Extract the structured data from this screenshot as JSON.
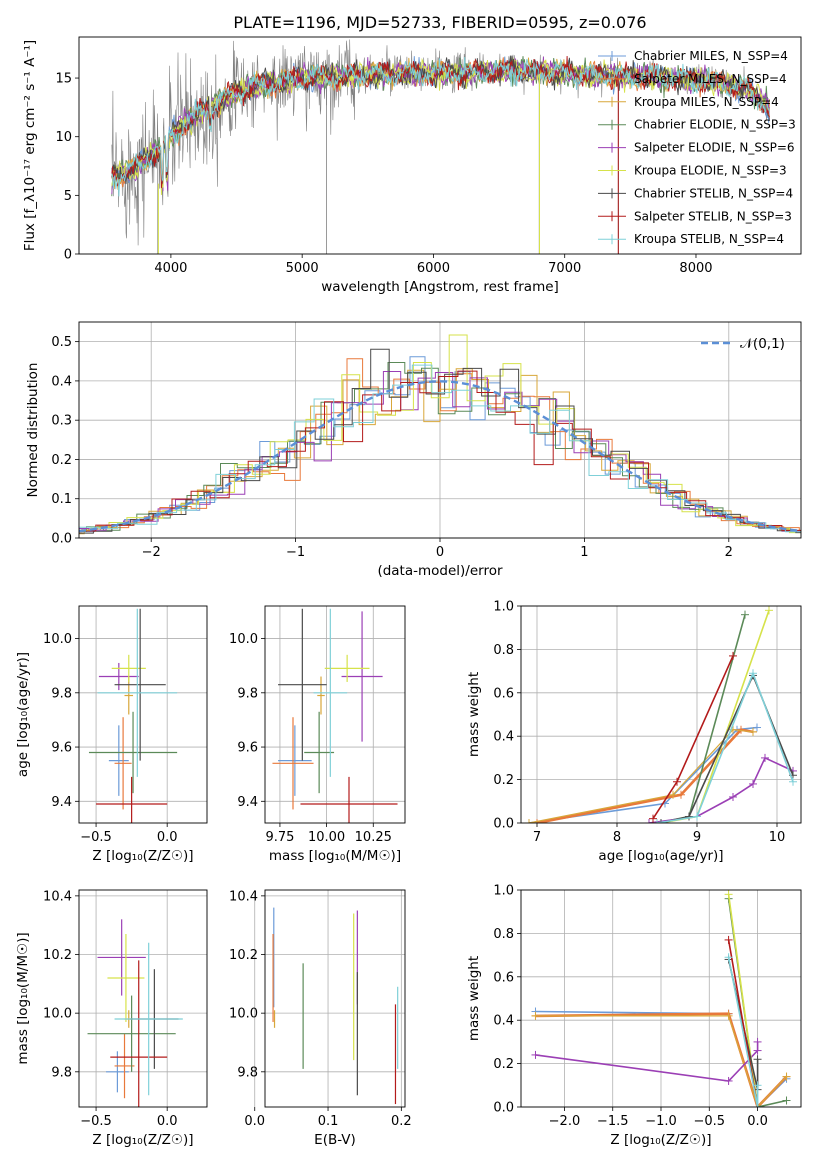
{
  "colors": [
    "#6c9bd8",
    "#e8793b",
    "#d8a73a",
    "#5b8a58",
    "#9b3fb5",
    "#d6e24a",
    "#4a4a4a",
    "#b31b1b",
    "#7fd0d8"
  ],
  "chart_data": [
    {
      "type": "line",
      "title": "PLATE=1196, MJD=52733, FIBERID=0595, z=0.076",
      "xlabel": "wavelength [Angstrom, rest frame]",
      "ylabel": "Flux [f_λ10⁻¹⁷ erg cm⁻² s⁻¹ A⁻¹]",
      "xlim": [
        3300,
        8800
      ],
      "ylim": [
        0,
        18.5
      ],
      "xticks": [
        "4000",
        "5000",
        "6000",
        "7000",
        "8000"
      ],
      "yticks": [
        "0",
        "5",
        "10",
        "15"
      ],
      "grid": false,
      "legend_position": "right",
      "series": [
        {
          "name": "Chabrier MILES, N_SSP=4"
        },
        {
          "name": "Salpeter MILES, N_SSP=4"
        },
        {
          "name": "Kroupa MILES, N_SSP=4"
        },
        {
          "name": "Chabrier ELODIE, N_SSP=3"
        },
        {
          "name": "Salpeter ELODIE, N_SSP=6"
        },
        {
          "name": "Kroupa ELODIE, N_SSP=3"
        },
        {
          "name": "Chabrier STELIB, N_SSP=4"
        },
        {
          "name": "Salpeter STELIB, N_SSP=3"
        },
        {
          "name": "Kroupa STELIB, N_SSP=4"
        }
      ],
      "spectrum_envelope": {
        "x": [
          3550,
          3700,
          3900,
          4100,
          4300,
          4500,
          4800,
          5000,
          5200,
          5500,
          5800,
          6000,
          6300,
          6600,
          6900,
          7200,
          7500,
          7800,
          8100,
          8400,
          8550
        ],
        "y": [
          6.5,
          7.2,
          8.8,
          11.2,
          12.6,
          13.9,
          14.6,
          15.0,
          15.1,
          15.3,
          15.4,
          15.4,
          15.5,
          15.6,
          15.5,
          15.3,
          15.2,
          15.0,
          14.8,
          14.0,
          12.5
        ]
      }
    },
    {
      "type": "bar",
      "xlabel": "(data-model)/error",
      "ylabel": "Normed distribution",
      "xlim": [
        -2.5,
        2.5
      ],
      "ylim": [
        0,
        0.55
      ],
      "xticks": [
        "−2",
        "−1",
        "0",
        "1",
        "2"
      ],
      "yticks": [
        "0.0",
        "0.1",
        "0.2",
        "0.3",
        "0.4",
        "0.5"
      ],
      "grid": true,
      "legend_position": "top-right",
      "legend": [
        "𝒩(0,1)"
      ]
    },
    {
      "type": "scatter",
      "xlabel": "Z [log₁₀(Z/Z☉)]",
      "ylabel": "age  [log₁₀(age/yr)]",
      "xlim": [
        -0.62,
        0.28
      ],
      "ylim": [
        9.32,
        10.12
      ],
      "xticks": [
        "−0.5",
        "0.0"
      ],
      "yticks": [
        "9.4",
        "9.6",
        "9.8",
        "10.0"
      ],
      "grid": true,
      "points": [
        {
          "x": -0.34,
          "y": 9.55,
          "xerr": 0.07,
          "yerr": 0.13
        },
        {
          "x": -0.31,
          "y": 9.54,
          "xerr": 0.06,
          "yerr": 0.17
        },
        {
          "x": -0.27,
          "y": 9.79,
          "xerr": 0.03,
          "yerr": 0.07
        },
        {
          "x": -0.24,
          "y": 9.58,
          "xerr": 0.31,
          "yerr": 0.15
        },
        {
          "x": -0.34,
          "y": 9.86,
          "xerr": 0.14,
          "yerr": 0.05
        },
        {
          "x": -0.27,
          "y": 9.89,
          "xerr": 0.12,
          "yerr": 0.05
        },
        {
          "x": -0.19,
          "y": 9.83,
          "xerr": 0.18,
          "yerr": 0.28
        },
        {
          "x": -0.25,
          "y": 9.39,
          "xerr": 0.25,
          "yerr": 0.1
        },
        {
          "x": -0.21,
          "y": 9.8,
          "xerr": 0.28,
          "yerr": 0.31
        }
      ]
    },
    {
      "type": "scatter",
      "xlabel": "mass [log₁₀(M/M☉)]",
      "ylabel": "",
      "xlim": [
        9.67,
        10.42
      ],
      "ylim": [
        9.32,
        10.12
      ],
      "xticks": [
        "9.75",
        "10.00",
        "10.25"
      ],
      "yticks": [
        "9.4",
        "9.6",
        "9.8",
        "10.0"
      ],
      "grid": true,
      "points": [
        {
          "x": 9.83,
          "y": 9.55,
          "xerr": 0.09,
          "yerr": 0.13
        },
        {
          "x": 9.82,
          "y": 9.54,
          "xerr": 0.11,
          "yerr": 0.17
        },
        {
          "x": 9.97,
          "y": 9.79,
          "xerr": 0.02,
          "yerr": 0.07
        },
        {
          "x": 9.96,
          "y": 9.58,
          "xerr": 0.08,
          "yerr": 0.15
        },
        {
          "x": 10.19,
          "y": 9.86,
          "xerr": 0.11,
          "yerr": 0.24
        },
        {
          "x": 10.11,
          "y": 9.89,
          "xerr": 0.12,
          "yerr": 0.05
        },
        {
          "x": 9.87,
          "y": 9.83,
          "xerr": 0.13,
          "yerr": 0.28
        },
        {
          "x": 10.12,
          "y": 9.39,
          "xerr": 0.26,
          "yerr": 0.1
        },
        {
          "x": 10.02,
          "y": 9.8,
          "xerr": 0.09,
          "yerr": 0.31
        }
      ]
    },
    {
      "type": "line",
      "xlabel": "age  [log₁₀(age/yr)]",
      "ylabel": "mass weight",
      "xlim": [
        6.8,
        10.3
      ],
      "ylim": [
        0,
        1.0
      ],
      "xticks": [
        "7",
        "8",
        "9",
        "10"
      ],
      "yticks": [
        "0.0",
        "0.2",
        "0.4",
        "0.6",
        "0.8",
        "1.0"
      ],
      "grid": true,
      "series": [
        {
          "x": [
            6.9,
            8.6,
            9.5,
            9.75
          ],
          "y": [
            0.0,
            0.09,
            0.43,
            0.44
          ]
        },
        {
          "x": [
            7.0,
            8.8,
            9.55,
            9.7
          ],
          "y": [
            0.0,
            0.13,
            0.43,
            0.42
          ]
        },
        {
          "x": [
            6.9,
            8.7,
            9.45,
            9.7
          ],
          "y": [
            0.0,
            0.13,
            0.43,
            0.42
          ]
        },
        {
          "x": [
            8.5,
            8.9,
            9.6
          ],
          "y": [
            0.0,
            0.03,
            0.96
          ]
        },
        {
          "x": [
            8.4,
            9.0,
            9.45,
            9.7,
            9.85,
            10.2
          ],
          "y": [
            0.0,
            0.03,
            0.12,
            0.18,
            0.3,
            0.24
          ]
        },
        {
          "x": [
            8.55,
            9.0,
            9.9
          ],
          "y": [
            0.0,
            0.03,
            0.98
          ]
        },
        {
          "x": [
            8.55,
            8.9,
            9.7,
            10.2
          ],
          "y": [
            0.0,
            0.03,
            0.68,
            0.22
          ]
        },
        {
          "x": [
            8.45,
            8.75,
            9.45
          ],
          "y": [
            0.02,
            0.19,
            0.77
          ]
        },
        {
          "x": [
            8.5,
            9.0,
            9.7,
            10.2
          ],
          "y": [
            0.0,
            0.03,
            0.69,
            0.19
          ]
        }
      ]
    },
    {
      "type": "scatter",
      "xlabel": "Z [log₁₀(Z/Z☉)]",
      "ylabel": "mass [log₁₀(M/M☉)]",
      "xlim": [
        -0.62,
        0.28
      ],
      "ylim": [
        9.68,
        10.42
      ],
      "xticks": [
        "−0.5",
        "0.0"
      ],
      "yticks": [
        "9.8",
        "10.0",
        "10.2",
        "10.4"
      ],
      "grid": true,
      "points": [
        {
          "x": -0.35,
          "y": 9.8,
          "xerr": 0.08,
          "yerr": 0.07
        },
        {
          "x": -0.3,
          "y": 9.82,
          "xerr": 0.07,
          "yerr": 0.11
        },
        {
          "x": -0.27,
          "y": 9.98,
          "xerr": 0.03,
          "yerr": 0.03
        },
        {
          "x": -0.25,
          "y": 9.93,
          "xerr": 0.31,
          "yerr": 0.13
        },
        {
          "x": -0.32,
          "y": 10.19,
          "xerr": 0.17,
          "yerr": 0.13
        },
        {
          "x": -0.29,
          "y": 10.12,
          "xerr": 0.13,
          "yerr": 0.15
        },
        {
          "x": -0.09,
          "y": 9.98,
          "xerr": 0.17,
          "yerr": 0.17
        },
        {
          "x": -0.2,
          "y": 9.85,
          "xerr": 0.2,
          "yerr": 0.33
        },
        {
          "x": -0.13,
          "y": 9.98,
          "xerr": 0.24,
          "yerr": 0.26
        }
      ]
    },
    {
      "type": "scatter",
      "xlabel": "E(B-V)",
      "ylabel": "",
      "xlim": [
        0.014,
        0.205
      ],
      "ylim": [
        9.68,
        10.42
      ],
      "xticks": [
        "0.0",
        "0.1",
        "0.2"
      ],
      "yticks": [
        "9.8",
        "10.0",
        "10.2",
        "10.4"
      ],
      "grid": true,
      "points": [
        {
          "x": 0.026,
          "y": 10.19,
          "xerr": 0,
          "yerr": 0.17
        },
        {
          "x": 0.025,
          "y": 10.12,
          "xerr": 0,
          "yerr": 0.15
        },
        {
          "x": 0.027,
          "y": 9.98,
          "xerr": 0,
          "yerr": 0.03
        },
        {
          "x": 0.066,
          "y": 9.99,
          "xerr": 0,
          "yerr": 0.18
        },
        {
          "x": 0.14,
          "y": 10.19,
          "xerr": 0,
          "yerr": 0.16
        },
        {
          "x": 0.135,
          "y": 10.09,
          "xerr": 0,
          "yerr": 0.25
        },
        {
          "x": 0.14,
          "y": 9.93,
          "xerr": 0,
          "yerr": 0.21
        },
        {
          "x": 0.192,
          "y": 9.86,
          "xerr": 0,
          "yerr": 0.17
        },
        {
          "x": 0.195,
          "y": 9.95,
          "xerr": 0,
          "yerr": 0.14
        }
      ]
    },
    {
      "type": "line",
      "xlabel": "Z [log₁₀(Z/Z☉)]",
      "ylabel": "mass weight",
      "xlim": [
        -2.45,
        0.45
      ],
      "ylim": [
        0,
        1.0
      ],
      "xticks": [
        "−2.0",
        "−1.5",
        "−1.0",
        "−0.5",
        "0.0"
      ],
      "yticks": [
        "0.0",
        "0.2",
        "0.4",
        "0.6",
        "0.8",
        "1.0"
      ],
      "grid": true,
      "series": [
        {
          "x": [
            -2.3,
            -0.3,
            0.0,
            0.3
          ],
          "y": [
            0.44,
            0.43,
            0.0,
            0.13
          ]
        },
        {
          "x": [
            -2.3,
            -0.3,
            0.0,
            0.3
          ],
          "y": [
            0.42,
            0.43,
            0.0,
            0.14
          ]
        },
        {
          "x": [
            -2.3,
            -0.3,
            0.0,
            0.3
          ],
          "y": [
            0.42,
            0.42,
            0.0,
            0.14
          ]
        },
        {
          "x": [
            -0.3,
            0.0,
            0.3
          ],
          "y": [
            0.96,
            0.0,
            0.03
          ]
        },
        {
          "x": [
            -2.3,
            -0.3,
            0.0,
            0.0
          ],
          "y": [
            0.24,
            0.12,
            0.26,
            0.3
          ]
        },
        {
          "x": [
            -0.3,
            0.0
          ],
          "y": [
            0.98,
            0.0
          ]
        },
        {
          "x": [
            -0.3,
            0.0,
            0.0
          ],
          "y": [
            0.68,
            0.08,
            0.22
          ]
        },
        {
          "x": [
            -0.3,
            0.0
          ],
          "y": [
            0.77,
            0.0
          ]
        },
        {
          "x": [
            -0.3,
            0.0,
            0.0
          ],
          "y": [
            0.69,
            0.0,
            0.1
          ]
        }
      ]
    }
  ]
}
